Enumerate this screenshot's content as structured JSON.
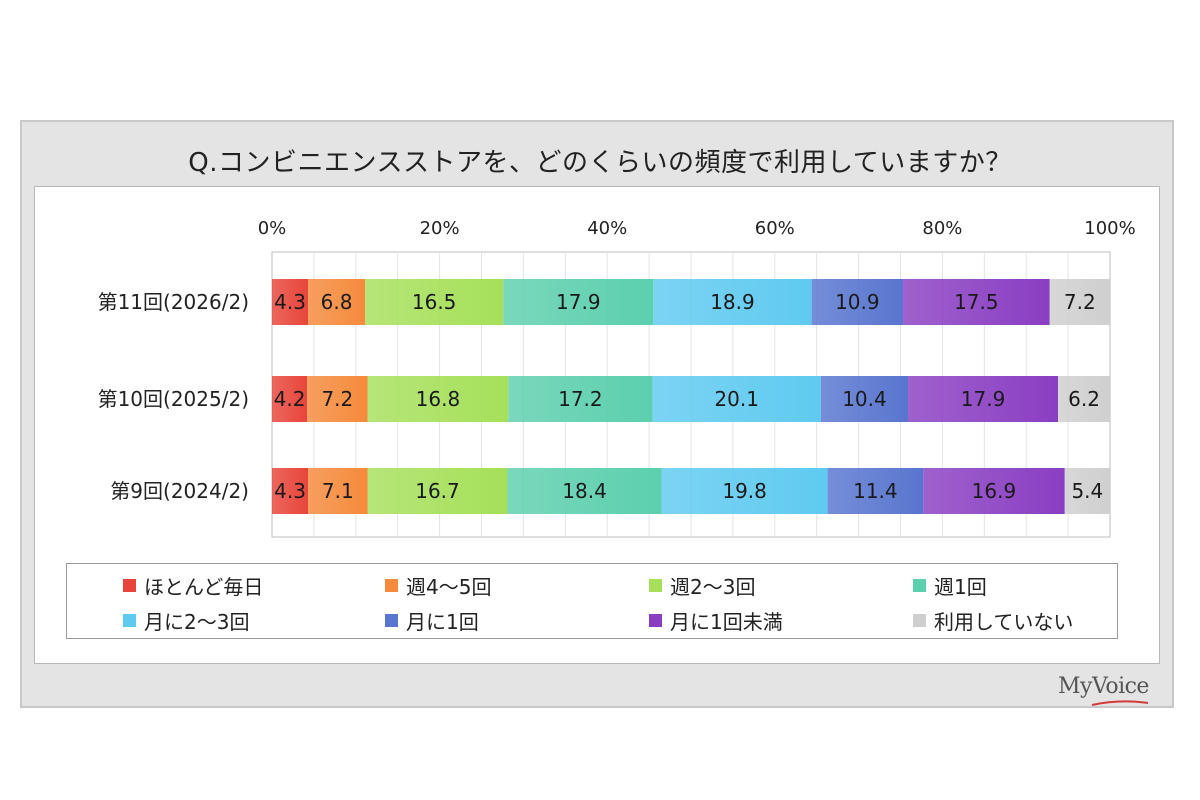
{
  "title": "Q.コンビニエンスストアを、どのくらいの頻度で利用していますか？",
  "brand": "MyVoice",
  "chart_data": {
    "type": "bar",
    "orientation": "horizontal",
    "stacked": true,
    "categories": [
      "第11回(2026/2)",
      "第10回(2025/2)",
      "第9回(2024/2)"
    ],
    "xlim": [
      0,
      100
    ],
    "ticks": [
      "0%",
      "20%",
      "40%",
      "60%",
      "80%",
      "100%"
    ],
    "grid": true,
    "legend_position": "bottom",
    "series": [
      {
        "name": "ほとんど毎日",
        "values": [
          4.3,
          4.2,
          4.3
        ],
        "color": "#e8453a"
      },
      {
        "name": "週4～5回",
        "values": [
          6.8,
          7.2,
          7.1
        ],
        "color": "#f58a3c"
      },
      {
        "name": "週2～3回",
        "values": [
          16.5,
          16.8,
          16.7
        ],
        "color": "#a6e05a"
      },
      {
        "name": "週1回",
        "values": [
          17.9,
          17.2,
          18.4
        ],
        "color": "#5ccfae"
      },
      {
        "name": "月に2～3回",
        "values": [
          18.9,
          20.1,
          19.8
        ],
        "color": "#5fcaf0"
      },
      {
        "name": "月に1回",
        "values": [
          10.9,
          10.4,
          11.4
        ],
        "color": "#5875cf"
      },
      {
        "name": "月に1回未満",
        "values": [
          17.5,
          17.9,
          16.9
        ],
        "color": "#8a3ec2"
      },
      {
        "name": "利用していない",
        "values": [
          7.2,
          6.2,
          5.4
        ],
        "color": "#cfcfcf"
      }
    ]
  }
}
